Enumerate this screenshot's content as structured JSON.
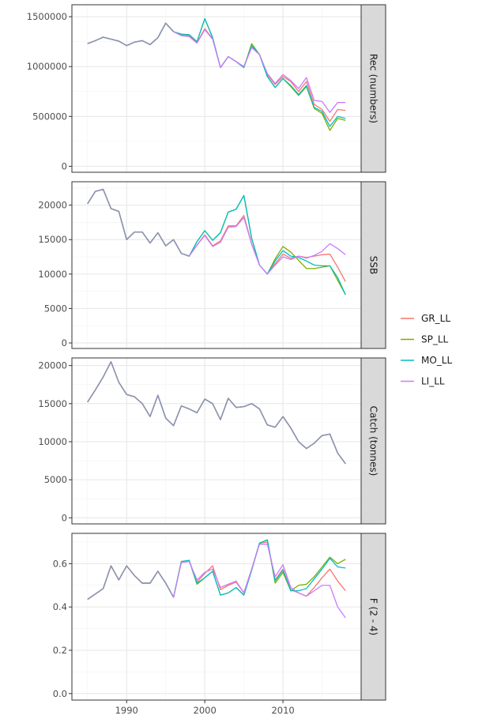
{
  "chart_data": {
    "type": "line",
    "facet_layout": "vertical-stack-shared-x",
    "xlim": [
      1983,
      2020
    ],
    "x_ticks": [
      "1990",
      "2000",
      "2010"
    ],
    "legend": {
      "placement": "right",
      "entries": [
        "GR_LL",
        "SP_LL",
        "MO_LL",
        "LI_LL"
      ]
    },
    "series_colors": {
      "GR_LL": "#F8766D",
      "SP_LL": "#7CAE00",
      "MO_LL": "#00BFC4",
      "LI_LL": "#C77CFF"
    },
    "common_color": "#8E93AE",
    "years": [
      1985,
      1986,
      1987,
      1988,
      1989,
      1990,
      1991,
      1992,
      1993,
      1994,
      1995,
      1996,
      1997,
      1998,
      1999,
      2000,
      2001,
      2002,
      2003,
      2004,
      2005,
      2006,
      2007,
      2008,
      2009,
      2010,
      2011,
      2012,
      2013,
      2014,
      2015,
      2016,
      2017,
      2018
    ],
    "panels": [
      {
        "strip": "Rec (numbers)",
        "ylim": [
          -60000,
          1620000
        ],
        "y_ticks": [
          "0",
          "500000",
          "1000000",
          "1500000"
        ],
        "common": [
          1230000,
          1260000,
          1295000,
          1275000,
          1255000,
          1210000,
          1245000,
          1260000,
          1220000,
          1290000,
          1435000,
          1350000
        ],
        "series": [
          {
            "name": "GR_LL",
            "values": [
              1230000,
              1260000,
              1295000,
              1275000,
              1255000,
              1210000,
              1245000,
              1260000,
              1220000,
              1290000,
              1435000,
              1350000,
              1315000,
              1310000,
              1240000,
              1380000,
              1280000,
              990000,
              1100000,
              1050000,
              1000000,
              1200000,
              1120000,
              920000,
              820000,
              900000,
              850000,
              750000,
              850000,
              620000,
              570000,
              450000,
              570000,
              560000
            ]
          },
          {
            "name": "SP_LL",
            "values": [
              1230000,
              1260000,
              1295000,
              1275000,
              1255000,
              1210000,
              1245000,
              1260000,
              1220000,
              1290000,
              1435000,
              1350000,
              1325000,
              1320000,
              1250000,
              1480000,
              1290000,
              990000,
              1100000,
              1050000,
              990000,
              1230000,
              1120000,
              900000,
              790000,
              880000,
              800000,
              710000,
              800000,
              580000,
              530000,
              360000,
              480000,
              460000
            ]
          },
          {
            "name": "MO_LL",
            "values": [
              1230000,
              1260000,
              1295000,
              1275000,
              1255000,
              1210000,
              1245000,
              1260000,
              1220000,
              1290000,
              1435000,
              1350000,
              1325000,
              1320000,
              1250000,
              1480000,
              1290000,
              990000,
              1100000,
              1050000,
              990000,
              1210000,
              1120000,
              900000,
              790000,
              880000,
              810000,
              720000,
              810000,
              590000,
              550000,
              400000,
              500000,
              480000
            ]
          },
          {
            "name": "LI_LL",
            "values": [
              1230000,
              1260000,
              1295000,
              1275000,
              1255000,
              1210000,
              1245000,
              1260000,
              1220000,
              1290000,
              1435000,
              1350000,
              1310000,
              1300000,
              1235000,
              1370000,
              1275000,
              990000,
              1100000,
              1050000,
              1000000,
              1190000,
              1120000,
              930000,
              830000,
              920000,
              860000,
              780000,
              890000,
              660000,
              650000,
              540000,
              640000,
              640000
            ]
          }
        ]
      },
      {
        "strip": "SSB",
        "ylim": [
          -800,
          23400
        ],
        "y_ticks": [
          "0",
          "5000",
          "10000",
          "15000",
          "20000"
        ],
        "common": [
          20200,
          22000,
          22300,
          19500,
          19100,
          15000,
          16100,
          16100,
          14500,
          16000,
          14100,
          15000,
          13000,
          12600
        ],
        "series": [
          {
            "name": "GR_LL",
            "values": [
              20200,
              22000,
              22300,
              19500,
              19100,
              15000,
              16100,
              16100,
              14500,
              16000,
              14100,
              15000,
              13000,
              12600,
              14200,
              15700,
              14100,
              14800,
              17000,
              17000,
              18500,
              14400,
              11300,
              10000,
              11500,
              12900,
              12300,
              12600,
              12400,
              12600,
              12800,
              12900,
              11000,
              8900
            ]
          },
          {
            "name": "SP_LL",
            "values": [
              20200,
              22000,
              22300,
              19500,
              19100,
              15000,
              16100,
              16100,
              14500,
              16000,
              14100,
              15000,
              13000,
              12600,
              14700,
              16300,
              14900,
              16000,
              19000,
              19400,
              21400,
              15200,
              11300,
              10000,
              12200,
              14000,
              13200,
              12000,
              10800,
              10800,
              11000,
              11200,
              9100,
              7000
            ]
          },
          {
            "name": "MO_LL",
            "values": [
              20200,
              22000,
              22300,
              19500,
              19100,
              15000,
              16100,
              16100,
              14500,
              16000,
              14100,
              15000,
              13000,
              12600,
              14700,
              16300,
              14900,
              16000,
              19000,
              19400,
              21400,
              15200,
              11300,
              10000,
              11900,
              13400,
              12600,
              12400,
              11900,
              11300,
              11200,
              11200,
              9500,
              7000
            ]
          },
          {
            "name": "LI_LL",
            "values": [
              20200,
              22000,
              22300,
              19500,
              19100,
              15000,
              16100,
              16100,
              14500,
              16000,
              14100,
              15000,
              13000,
              12600,
              14200,
              15600,
              14000,
              14600,
              16800,
              16900,
              18200,
              14300,
              11300,
              10000,
              11300,
              12500,
              12100,
              12600,
              12300,
              12700,
              13300,
              14400,
              13700,
              12800
            ]
          }
        ]
      },
      {
        "strip": "Catch (tonnes)",
        "ylim": [
          -800,
          21000
        ],
        "y_ticks": [
          "0",
          "5000",
          "10000",
          "15000",
          "20000"
        ],
        "common": [
          15200,
          16800,
          18500,
          20500,
          17800,
          16200,
          15900,
          15000,
          13300,
          16100,
          13100,
          12100,
          14700,
          14300,
          13800,
          15600,
          15000,
          12900,
          15700,
          14500,
          14600,
          15000,
          14300,
          12200,
          11900,
          13300,
          11800,
          10000,
          9100,
          9800,
          10800,
          11000,
          8500,
          7100
        ],
        "series": [
          {
            "name": "GR_LL",
            "values": [
              15200,
              16800,
              18500,
              20500,
              17800,
              16200,
              15900,
              15000,
              13300,
              16100,
              13100,
              12100,
              14700,
              14300,
              13800,
              15600,
              15000,
              12900,
              15700,
              14500,
              14600,
              15000,
              14300,
              12200,
              11900,
              13300,
              11800,
              10000,
              9100,
              9800,
              10800,
              11000,
              8500,
              7100
            ]
          },
          {
            "name": "SP_LL",
            "values": [
              15200,
              16800,
              18500,
              20500,
              17800,
              16200,
              15900,
              15000,
              13300,
              16100,
              13100,
              12100,
              14700,
              14300,
              13800,
              15600,
              15000,
              12900,
              15700,
              14500,
              14600,
              15000,
              14300,
              12200,
              11900,
              13300,
              11800,
              10000,
              9100,
              9800,
              10800,
              11000,
              8500,
              7100
            ]
          },
          {
            "name": "MO_LL",
            "values": [
              15200,
              16800,
              18500,
              20500,
              17800,
              16200,
              15900,
              15000,
              13300,
              16100,
              13100,
              12100,
              14700,
              14300,
              13800,
              15600,
              15000,
              12900,
              15700,
              14500,
              14600,
              15000,
              14300,
              12200,
              11900,
              13300,
              11800,
              10000,
              9100,
              9800,
              10800,
              11000,
              8500,
              7100
            ]
          },
          {
            "name": "LI_LL",
            "values": [
              15200,
              16800,
              18500,
              20500,
              17800,
              16200,
              15900,
              15000,
              13300,
              16100,
              13100,
              12100,
              14700,
              14300,
              13800,
              15600,
              15000,
              12900,
              15700,
              14500,
              14600,
              15000,
              14300,
              12200,
              11900,
              13300,
              11800,
              10000,
              9100,
              9800,
              10800,
              11000,
              8500,
              7100
            ]
          }
        ]
      },
      {
        "strip": "F (2 - 4)",
        "ylim": [
          -0.03,
          0.74
        ],
        "y_ticks": [
          "0.0",
          "0.2",
          "0.4",
          "0.6"
        ],
        "common": [
          0.435,
          0.46,
          0.485,
          0.59,
          0.525,
          0.59,
          0.545,
          0.51,
          0.51,
          0.565,
          0.51,
          0.445
        ],
        "series": [
          {
            "name": "GR_LL",
            "values": [
              0.435,
              0.46,
              0.485,
              0.59,
              0.525,
              0.59,
              0.545,
              0.51,
              0.51,
              0.565,
              0.51,
              0.445,
              0.61,
              0.615,
              0.515,
              0.555,
              0.59,
              0.48,
              0.5,
              0.515,
              0.465,
              0.575,
              0.695,
              0.7,
              0.525,
              0.575,
              0.48,
              0.465,
              0.45,
              0.49,
              0.535,
              0.575,
              0.52,
              0.475
            ]
          },
          {
            "name": "SP_LL",
            "values": [
              0.435,
              0.46,
              0.485,
              0.59,
              0.525,
              0.59,
              0.545,
              0.51,
              0.51,
              0.565,
              0.51,
              0.445,
              0.61,
              0.615,
              0.505,
              0.535,
              0.565,
              0.455,
              0.465,
              0.49,
              0.455,
              0.57,
              0.695,
              0.71,
              0.51,
              0.56,
              0.475,
              0.5,
              0.505,
              0.54,
              0.585,
              0.63,
              0.6,
              0.62
            ]
          },
          {
            "name": "MO_LL",
            "values": [
              0.435,
              0.46,
              0.485,
              0.59,
              0.525,
              0.59,
              0.545,
              0.51,
              0.51,
              0.565,
              0.51,
              0.445,
              0.61,
              0.615,
              0.51,
              0.535,
              0.565,
              0.455,
              0.465,
              0.49,
              0.455,
              0.57,
              0.695,
              0.71,
              0.52,
              0.57,
              0.475,
              0.475,
              0.485,
              0.53,
              0.575,
              0.625,
              0.585,
              0.58
            ]
          },
          {
            "name": "LI_LL",
            "values": [
              0.435,
              0.46,
              0.485,
              0.59,
              0.525,
              0.59,
              0.545,
              0.51,
              0.51,
              0.565,
              0.51,
              0.445,
              0.605,
              0.61,
              0.525,
              0.56,
              0.575,
              0.49,
              0.505,
              0.52,
              0.465,
              0.575,
              0.69,
              0.69,
              0.54,
              0.595,
              0.49,
              0.465,
              0.45,
              0.475,
              0.5,
              0.5,
              0.4,
              0.35
            ]
          }
        ]
      }
    ]
  }
}
